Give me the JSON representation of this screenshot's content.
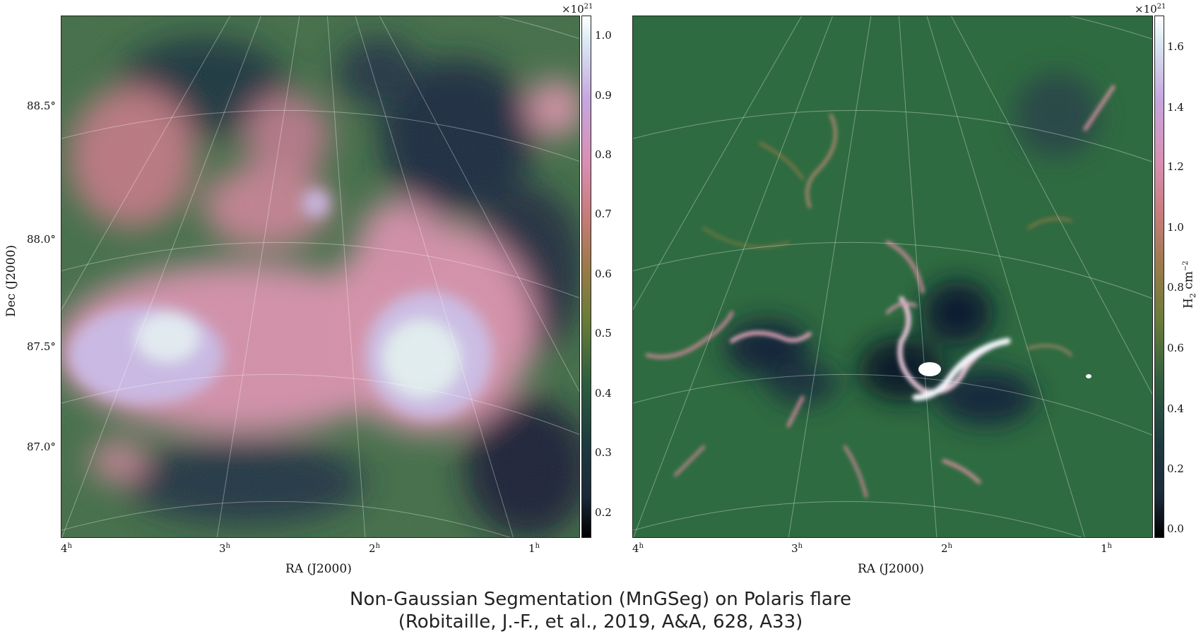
{
  "left_panel": {
    "y_axis_label": "Dec (J2000)",
    "x_axis_label": "RA (J2000)",
    "dec_ticks": [
      "88.5°",
      "88.0°",
      "87.5°",
      "87.0°"
    ],
    "ra_ticks": [
      "4",
      "3",
      "2",
      "1"
    ],
    "ra_unit": "h",
    "colorbar_exponent_base": "×10",
    "colorbar_exponent": "21",
    "colorbar_ticks": [
      "1.0",
      "0.9",
      "0.8",
      "0.7",
      "0.6",
      "0.5",
      "0.4",
      "0.3",
      "0.2"
    ]
  },
  "right_panel": {
    "x_axis_label": "RA (J2000)",
    "ra_ticks": [
      "4",
      "3",
      "2",
      "1"
    ],
    "ra_unit": "h",
    "colorbar_exponent_base": "×10",
    "colorbar_exponent": "21",
    "colorbar_ticks": [
      "1.6",
      "1.4",
      "1.2",
      "1.0",
      "0.8",
      "0.6",
      "0.4",
      "0.2",
      "0.0"
    ],
    "colorbar_label_base": "H",
    "colorbar_label_sub": "2",
    "colorbar_label_unit": " cm",
    "colorbar_label_power": "−2"
  },
  "caption": {
    "line1": "Non-Gaussian Segmentation (MnGSeg) on Polaris flare",
    "line2": "(Robitaille, J.-F., et al., 2019, A&A, 628, A33)"
  },
  "colors": {
    "background": "#2f6b40",
    "dark": "#15263a",
    "pink": "#d88fa8",
    "light": "#dfe6f5"
  }
}
